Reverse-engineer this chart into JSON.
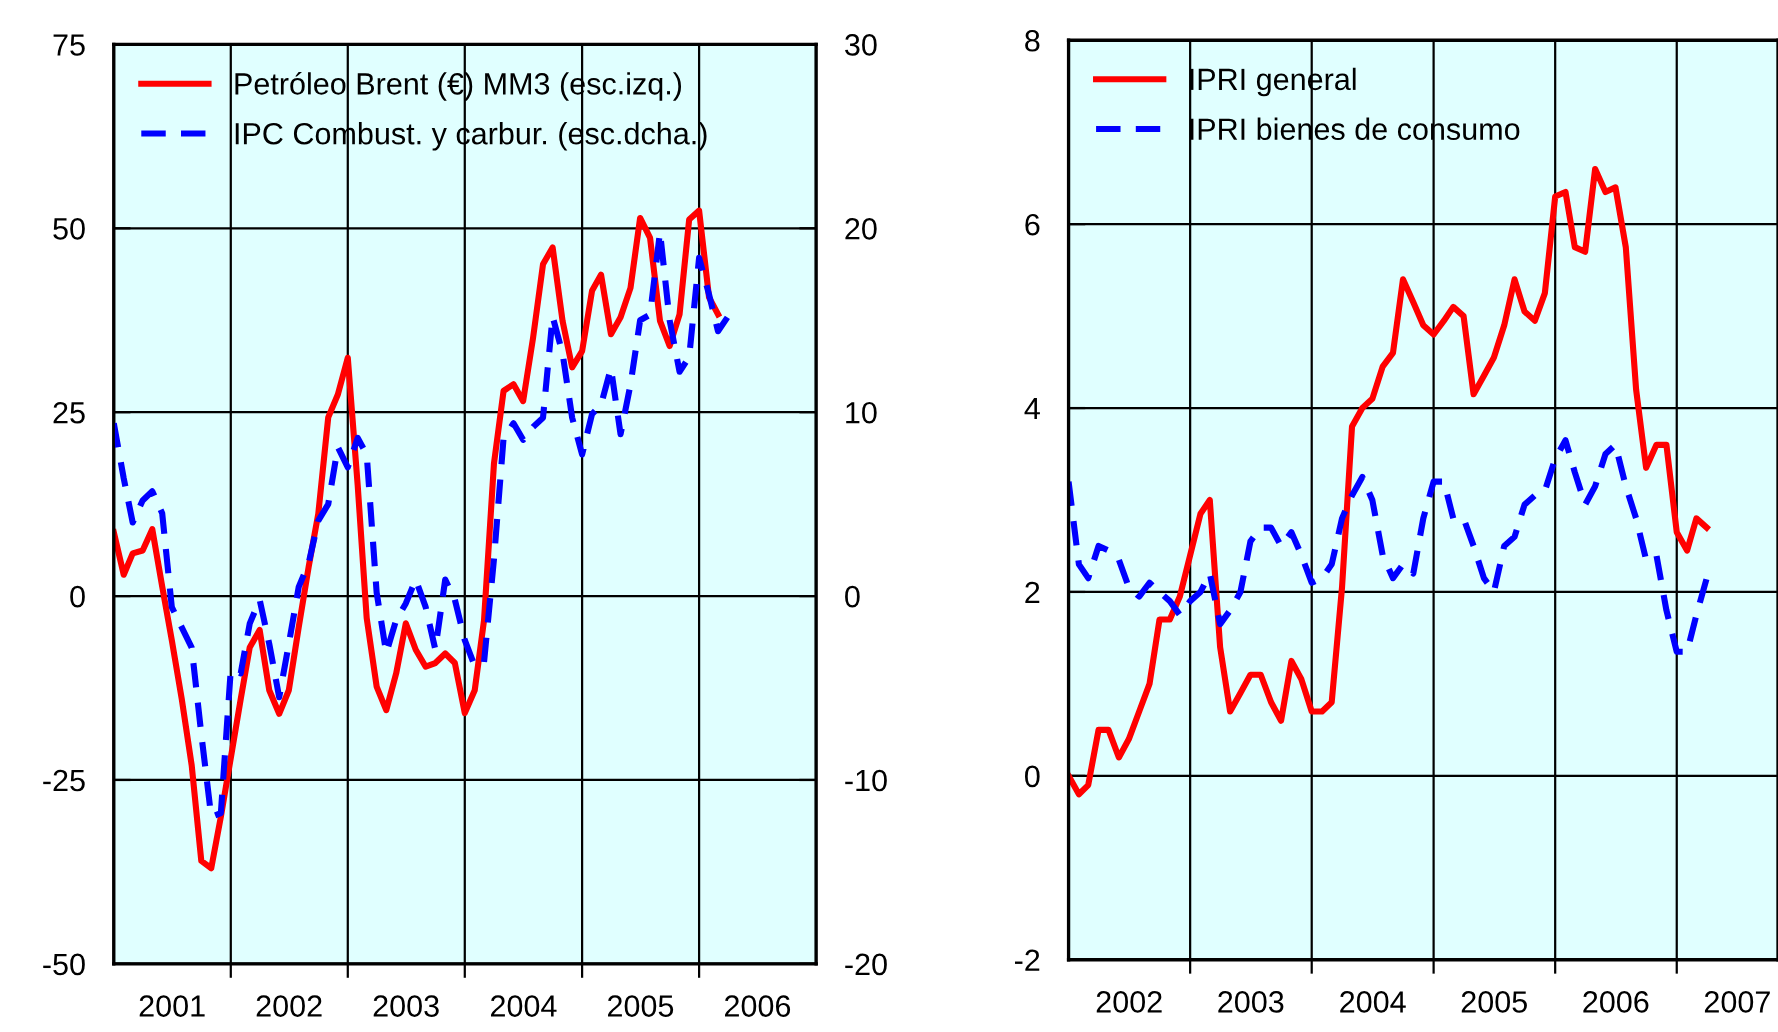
{
  "chart_data": [
    {
      "type": "line",
      "legend": "top left",
      "grid": true,
      "x": [
        "2001-01",
        "2001-02",
        "2001-03",
        "2001-04",
        "2001-05",
        "2001-06",
        "2001-07",
        "2001-08",
        "2001-09",
        "2001-10",
        "2001-11",
        "2001-12",
        "2002-01",
        "2002-02",
        "2002-03",
        "2002-04",
        "2002-05",
        "2002-06",
        "2002-07",
        "2002-08",
        "2002-09",
        "2002-10",
        "2002-11",
        "2002-12",
        "2003-01",
        "2003-02",
        "2003-03",
        "2003-04",
        "2003-05",
        "2003-06",
        "2003-07",
        "2003-08",
        "2003-09",
        "2003-10",
        "2003-11",
        "2003-12",
        "2004-01",
        "2004-02",
        "2004-03",
        "2004-04",
        "2004-05",
        "2004-06",
        "2004-07",
        "2004-08",
        "2004-09",
        "2004-10",
        "2004-11",
        "2004-12",
        "2005-01",
        "2005-02",
        "2005-03",
        "2005-04",
        "2005-05",
        "2005-06",
        "2005-07",
        "2005-08",
        "2005-09",
        "2005-10",
        "2005-11",
        "2005-12",
        "2006-01",
        "2006-02",
        "2006-03",
        "2006-04"
      ],
      "xlim": [
        "2001-01-01",
        "2007-01-01"
      ],
      "xticks": [
        {
          "value": "2001-07-02",
          "label": "2001"
        },
        {
          "value": "2002-01-01",
          "label": null
        },
        {
          "value": "2002-07-02",
          "label": "2002"
        },
        {
          "value": "2003-01-01",
          "label": null
        },
        {
          "value": "2003-07-02",
          "label": "2003"
        },
        {
          "value": "2004-01-01",
          "label": null
        },
        {
          "value": "2004-07-02",
          "label": "2004"
        },
        {
          "value": "2005-01-01",
          "label": null
        },
        {
          "value": "2005-07-02",
          "label": "2005"
        },
        {
          "value": "2006-01-01",
          "label": null
        },
        {
          "value": "2006-07-02",
          "label": "2006"
        }
      ],
      "ylim": [
        -50,
        75
      ],
      "yticks": [
        -50,
        -25,
        0,
        25,
        50,
        75
      ],
      "y2lim": [
        -20,
        30
      ],
      "y2ticks": [
        -20,
        -10,
        0,
        10,
        20,
        30
      ],
      "series": [
        {
          "name": "Petróleo Brent (€) MM3 (esc.izq.)",
          "color": "#ff0000",
          "line_style": "solid",
          "values": [
            8.7,
            2.9,
            5.8,
            6.2,
            9.1,
            1.3,
            -6,
            -14,
            -23,
            -36,
            -37,
            -30,
            -22,
            -14,
            -7,
            -4.6,
            -12.8,
            -16,
            -12.8,
            -4.2,
            4,
            11.2,
            24.3,
            27.4,
            32.4,
            15,
            -3,
            -12.3,
            -15.5,
            -10.5,
            -3.7,
            -7.3,
            -9.6,
            -9.1,
            -7.8,
            -9.1,
            -15.9,
            -12.8,
            -3.3,
            18,
            27.9,
            28.8,
            26.5,
            35.1,
            45.1,
            47.4,
            37.4,
            31.1,
            33.3,
            41.5,
            43.7,
            35.6,
            37.9,
            41.9,
            51.4,
            48.7,
            37.4,
            34,
            38.3,
            51.2,
            52.4,
            40.6,
            38.3,
            null
          ]
        },
        {
          "name": "IPC Combust. y carbur. (esc.dcha.)",
          "color": "#0000ff",
          "line_style": "dashed",
          "axis": "y2",
          "values": [
            9.4,
            6.4,
            4.0,
            5.2,
            5.7,
            4.5,
            -0.6,
            -1.7,
            -2.8,
            -7.5,
            -12.0,
            -11.8,
            -4.0,
            -4.2,
            -1.5,
            -0.2,
            -2.6,
            -5.5,
            -2.6,
            0.5,
            1.8,
            4.1,
            5.0,
            8.1,
            7.0,
            8.6,
            7.7,
            0.2,
            -3.1,
            -1.3,
            -0.4,
            0.9,
            -0.6,
            -2.9,
            0.9,
            -0.2,
            -2.4,
            -3.8,
            -3.6,
            2.0,
            8.6,
            9.4,
            8.5,
            9.2,
            9.7,
            15.2,
            13.2,
            9.7,
            7.7,
            9.9,
            10.4,
            12.4,
            8.8,
            11.5,
            15.0,
            15.3,
            19.8,
            15.0,
            12.2,
            13.0,
            18.4,
            16.4,
            14.4,
            15.2
          ]
        }
      ]
    },
    {
      "type": "line",
      "legend": "top left",
      "grid": true,
      "x": [
        "2002-01",
        "2002-02",
        "2002-03",
        "2002-04",
        "2002-05",
        "2002-06",
        "2002-07",
        "2002-08",
        "2002-09",
        "2002-10",
        "2002-11",
        "2002-12",
        "2003-01",
        "2003-02",
        "2003-03",
        "2003-04",
        "2003-05",
        "2003-06",
        "2003-07",
        "2003-08",
        "2003-09",
        "2003-10",
        "2003-11",
        "2003-12",
        "2004-01",
        "2004-02",
        "2004-03",
        "2004-04",
        "2004-05",
        "2004-06",
        "2004-07",
        "2004-08",
        "2004-09",
        "2004-10",
        "2004-11",
        "2004-12",
        "2005-01",
        "2005-02",
        "2005-03",
        "2005-04",
        "2005-05",
        "2005-06",
        "2005-07",
        "2005-08",
        "2005-09",
        "2005-10",
        "2005-11",
        "2005-12",
        "2006-01",
        "2006-02",
        "2006-03",
        "2006-04",
        "2006-05",
        "2006-06",
        "2006-07",
        "2006-08",
        "2006-09",
        "2006-10",
        "2006-11",
        "2006-12",
        "2007-01",
        "2007-02",
        "2007-03",
        "2007-04"
      ],
      "xlim": [
        "2002-01-01",
        "2007-11-01"
      ],
      "xticks": [
        {
          "value": "2002-07-02",
          "label": "2002"
        },
        {
          "value": "2003-01-01",
          "label": null
        },
        {
          "value": "2003-07-02",
          "label": "2003"
        },
        {
          "value": "2004-01-01",
          "label": null
        },
        {
          "value": "2004-07-02",
          "label": "2004"
        },
        {
          "value": "2005-01-01",
          "label": null
        },
        {
          "value": "2005-07-02",
          "label": "2005"
        },
        {
          "value": "2006-01-01",
          "label": null
        },
        {
          "value": "2006-07-02",
          "label": "2006"
        },
        {
          "value": "2007-01-01",
          "label": null
        },
        {
          "value": "2007-07-02",
          "label": "2007"
        }
      ],
      "ylim": [
        -2,
        8
      ],
      "yticks": [
        -2,
        0,
        2,
        4,
        6,
        8
      ],
      "series": [
        {
          "name": "IPRI general",
          "color": "#ff0000",
          "line_style": "solid",
          "values": [
            0.0,
            -0.2,
            -0.1,
            0.5,
            0.5,
            0.2,
            0.4,
            0.7,
            1.0,
            1.7,
            1.7,
            1.95,
            2.4,
            2.85,
            3.0,
            1.4,
            0.7,
            0.9,
            1.1,
            1.1,
            0.8,
            0.6,
            1.25,
            1.05,
            0.7,
            0.7,
            0.8,
            2.05,
            3.8,
            4.0,
            4.1,
            4.45,
            4.6,
            5.4,
            5.15,
            4.9,
            4.8,
            4.95,
            5.1,
            5.0,
            4.15,
            4.35,
            4.55,
            4.9,
            5.4,
            5.05,
            4.95,
            5.25,
            6.3,
            6.35,
            5.75,
            5.7,
            6.6,
            6.35,
            6.4,
            5.75,
            4.2,
            3.35,
            3.6,
            3.6,
            2.65,
            2.45,
            2.8,
            2.7
          ]
        },
        {
          "name": "IPRI bienes de consumo",
          "color": "#0000ff",
          "line_style": "dashed",
          "values": [
            3.2,
            2.3,
            2.15,
            2.5,
            2.45,
            2.35,
            2.05,
            1.95,
            2.1,
            2.0,
            1.9,
            1.75,
            1.9,
            2.0,
            2.2,
            1.65,
            1.8,
            2.0,
            2.55,
            2.7,
            2.7,
            2.5,
            2.65,
            2.4,
            2.1,
            2.15,
            2.3,
            2.8,
            3.05,
            3.25,
            3.0,
            2.4,
            2.15,
            2.3,
            2.2,
            2.8,
            3.2,
            3.2,
            2.8,
            2.8,
            2.5,
            2.15,
            2.0,
            2.5,
            2.6,
            2.95,
            3.05,
            3.1,
            3.45,
            3.65,
            3.3,
            2.95,
            3.15,
            3.5,
            3.6,
            3.15,
            2.8,
            2.35,
            2.4,
            1.8,
            1.35,
            1.35,
            1.75,
            2.15
          ]
        }
      ]
    }
  ]
}
